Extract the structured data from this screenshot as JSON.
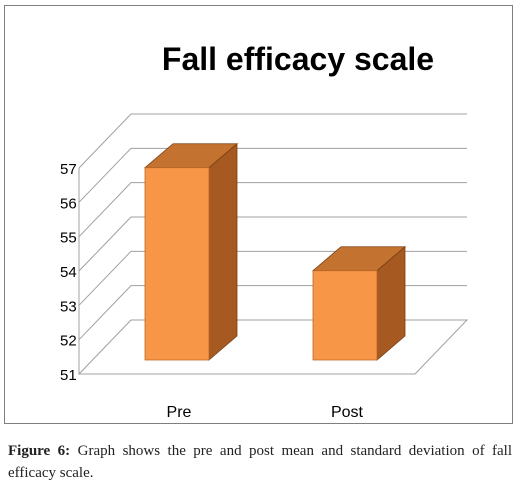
{
  "chart_data": {
    "type": "bar",
    "style": "3d-column",
    "title": "Fall efficacy scale",
    "categories": [
      "Pre",
      "Post"
    ],
    "values": [
      56.6,
      53.6
    ],
    "ylim": [
      51,
      57
    ],
    "yticks": [
      "51",
      "52",
      "53",
      "54",
      "55",
      "56",
      "57"
    ],
    "grid": true,
    "legend": "none",
    "colors": {
      "bar_front": "#F79646",
      "bar_side": "#A65A21",
      "bar_top": "#C3732F",
      "grid": "#A0A0A0"
    }
  },
  "caption": {
    "label": "Figure 6:",
    "text": " Graph shows the pre and post mean and standard deviation of fall efficacy scale."
  }
}
